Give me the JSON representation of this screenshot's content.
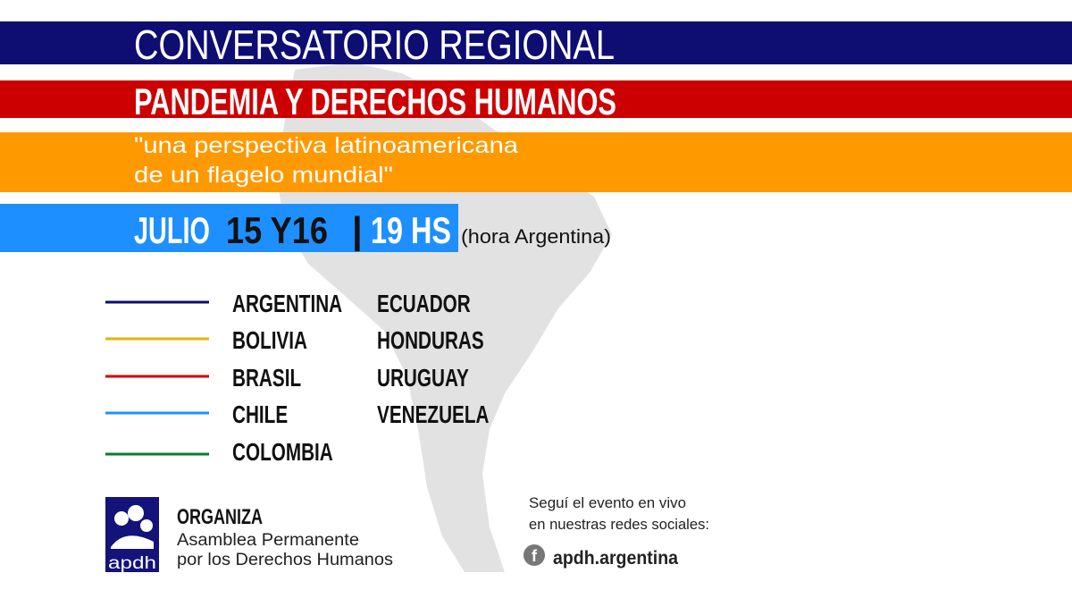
{
  "title": "CONVERSATORIO REGIONAL",
  "subtitle": "PANDEMIA Y DERECHOS HUMANOS",
  "tagline": [
    "\"una perspectiva latinoamericana",
    "de un flagelo mundial\""
  ],
  "date": {
    "month": "JULIO",
    "days": "15 Y16",
    "separator": "|",
    "time": "19 HS",
    "timezone": "(hora Argentina)"
  },
  "countries": [
    {
      "name": "ARGENTINA",
      "color": "#0d0d72"
    },
    {
      "name": "BOLIVIA",
      "color": "#e3b505"
    },
    {
      "name": "BRASIL",
      "color": "#d40000"
    },
    {
      "name": "CHILE",
      "color": "#1e90ff"
    },
    {
      "name": "COLOMBIA",
      "color": "#0b7a2e"
    },
    {
      "name": "ECUADOR"
    },
    {
      "name": "HONDURAS"
    },
    {
      "name": "URUGUAY"
    },
    {
      "name": "VENEZUELA"
    }
  ],
  "organizer": {
    "label": "ORGANIZA",
    "name": [
      "Asamblea Permanente",
      "por los Derechos Humanos"
    ],
    "logo": "apdh"
  },
  "social": {
    "text": [
      "Seguí el evento en vivo",
      "en nuestras redes sociales:"
    ],
    "icon": "f",
    "handle": "apdh.argentina"
  }
}
